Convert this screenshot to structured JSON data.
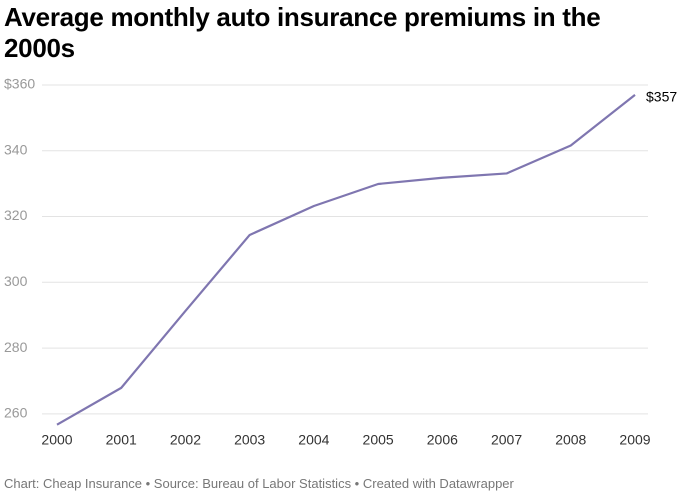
{
  "chart_data": {
    "type": "line",
    "title": "Average monthly auto insurance premiums in the 2000s",
    "source": "Chart: Cheap Insurance • Source: Bureau of Labor Statistics • Created with Datawrapper",
    "x": [
      2000,
      2001,
      2002,
      2003,
      2004,
      2005,
      2006,
      2007,
      2008,
      2009
    ],
    "series": [
      {
        "color": "#7f76b0",
        "values": [
          256.7,
          267.9,
          291.3,
          314.4,
          323.2,
          329.9,
          331.8,
          333.1,
          341.6,
          357
        ],
        "value_labels": [
          null,
          null,
          null,
          null,
          null,
          null,
          null,
          null,
          null,
          "$357"
        ]
      }
    ],
    "xlim": [
      2000,
      2009
    ],
    "xticks": [
      2000,
      2001,
      2002,
      2003,
      2004,
      2005,
      2006,
      2007,
      2008,
      2009
    ],
    "ylim": [
      256,
      360
    ],
    "yticks": [
      260,
      280,
      300,
      320,
      340,
      {
        "value": 360,
        "label": "$360"
      }
    ],
    "grid": true
  }
}
